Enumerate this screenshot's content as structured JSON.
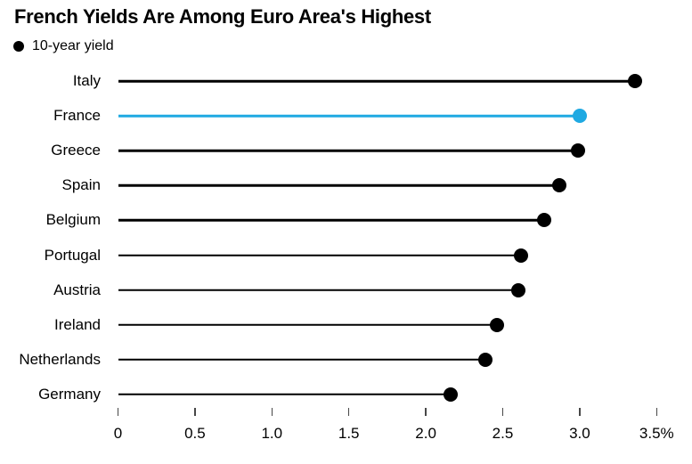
{
  "title": "French Yields Are Among Euro Area's Highest",
  "legend": {
    "marker": "circle",
    "marker_color": "#000000",
    "label": "10-year yield"
  },
  "chart_data": {
    "type": "bar",
    "subtype": "lollipop",
    "orientation": "horizontal",
    "title": "French Yields Are Among Euro Area's Highest",
    "series_name": "10-year yield",
    "categories": [
      "Italy",
      "France",
      "Greece",
      "Spain",
      "Belgium",
      "Portugal",
      "Austria",
      "Ireland",
      "Netherlands",
      "Germany"
    ],
    "values": [
      3.36,
      3.0,
      2.99,
      2.87,
      2.77,
      2.62,
      2.6,
      2.46,
      2.39,
      2.16
    ],
    "unit": "%",
    "xlabel": "",
    "ylabel": "",
    "xlim": [
      0,
      3.5
    ],
    "x_ticks": [
      0,
      0.5,
      1.0,
      1.5,
      2.0,
      2.5,
      3.0,
      3.5
    ],
    "x_tick_labels": [
      "0",
      "0.5",
      "1.0",
      "1.5",
      "2.0",
      "2.5",
      "3.0",
      "3.5%"
    ],
    "grid": false,
    "legend_position": "top-left",
    "highlight_category": "France",
    "colors": {
      "default": "#000000",
      "highlight": "#1FA9E2"
    }
  }
}
